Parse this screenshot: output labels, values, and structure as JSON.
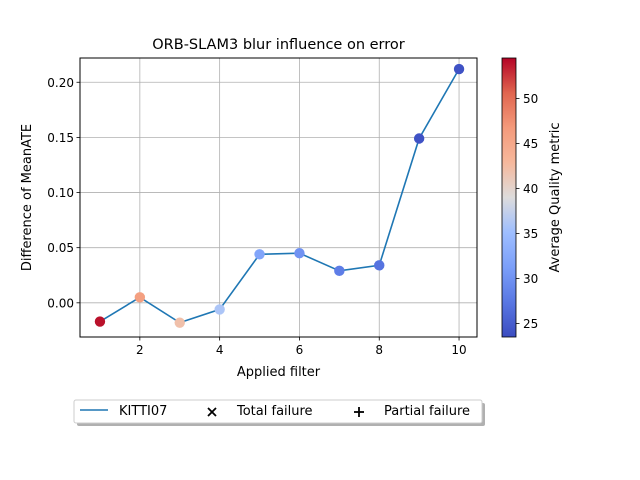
{
  "chart_data": {
    "type": "line",
    "title": "ORB-SLAM3 blur influence on error",
    "xlabel": "Applied filter",
    "ylabel": "Difference of MeanATE",
    "xlim": [
      0.5,
      10.45
    ],
    "ylim": [
      -0.031,
      0.222
    ],
    "xticks": [
      2,
      4,
      6,
      8,
      10
    ],
    "yticks": [
      0.0,
      0.05,
      0.1,
      0.15,
      0.2
    ],
    "ytick_labels": [
      "0.00",
      "0.05",
      "0.10",
      "0.15",
      "0.20"
    ],
    "grid": true,
    "series": [
      {
        "name": "KITTI07",
        "color": "#1f77b4",
        "x": [
          1,
          2,
          3,
          4,
          5,
          6,
          7,
          8,
          9,
          10
        ],
        "y": [
          -0.017,
          0.005,
          -0.018,
          -0.006,
          0.044,
          0.045,
          0.029,
          0.034,
          0.149,
          0.212
        ],
        "quality": [
          54,
          46,
          42,
          36,
          32,
          30,
          28,
          27,
          24,
          24
        ]
      }
    ],
    "colorbar": {
      "label": "Average Quality metric",
      "colormap": "coolwarm",
      "min": 23.5,
      "max": 54.5,
      "ticks": [
        25,
        30,
        35,
        40,
        45,
        50
      ]
    },
    "legend": {
      "placement": "bottom",
      "entries": [
        {
          "label": "KITTI07",
          "marker": "line",
          "color": "#1f77b4"
        },
        {
          "label": "Total failure",
          "marker": "x",
          "color": "#000000"
        },
        {
          "label": "Partial failure",
          "marker": "+",
          "color": "#000000"
        }
      ]
    }
  }
}
